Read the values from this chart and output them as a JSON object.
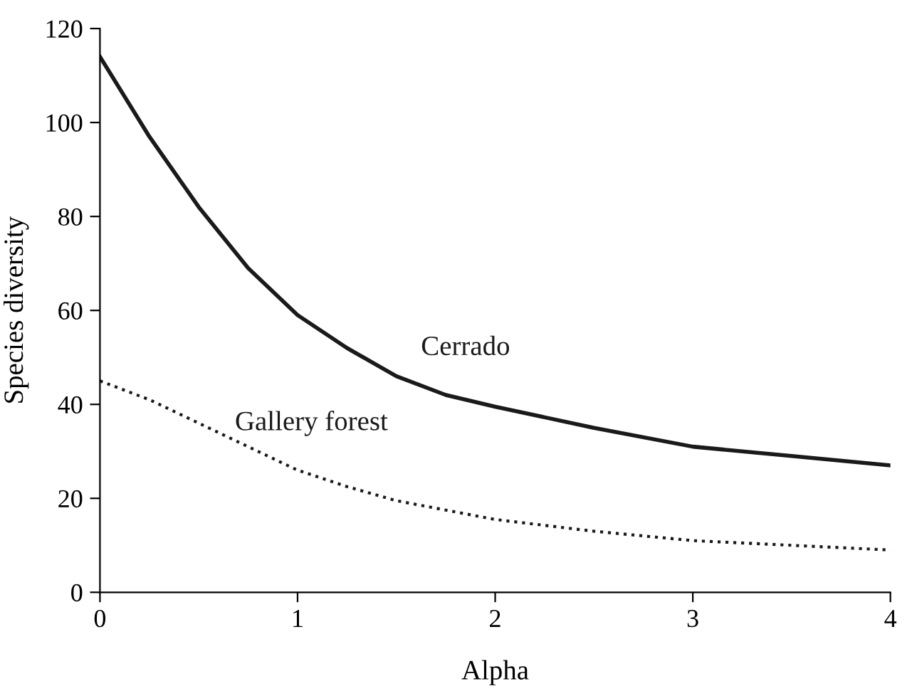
{
  "chart_data": {
    "type": "line",
    "xlabel": "Alpha",
    "ylabel": "Species diversity",
    "x": [
      0,
      0.25,
      0.5,
      0.75,
      1,
      1.25,
      1.5,
      1.75,
      2,
      2.5,
      3,
      3.5,
      4
    ],
    "series": [
      {
        "name": "Cerrado",
        "color": "#1a1a1a",
        "line_style": "solid",
        "values": [
          114,
          97,
          82,
          69,
          59,
          52,
          46,
          42,
          39.5,
          35,
          31,
          29,
          27
        ]
      },
      {
        "name": "Gallery forest",
        "color": "#1a1a1a",
        "line_style": "dotted",
        "values": [
          45,
          41,
          36,
          31,
          26,
          22.5,
          19.5,
          17.5,
          15.5,
          13,
          11,
          10,
          9
        ]
      }
    ],
    "xlim": [
      0,
      4
    ],
    "xticks": [
      0,
      1,
      2,
      3,
      4
    ],
    "ylim": [
      0,
      120
    ],
    "yticks": [
      0,
      20,
      40,
      60,
      80,
      100,
      120
    ],
    "grid": false,
    "legend": false,
    "marker": "none"
  }
}
